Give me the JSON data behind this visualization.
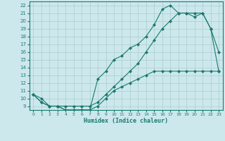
{
  "xlabel": "Humidex (Indice chaleur)",
  "bg_color": "#cce8ec",
  "line_color": "#1a7a6e",
  "grid_color": "#aacccc",
  "xlim": [
    -0.5,
    23.5
  ],
  "ylim": [
    8.5,
    22.5
  ],
  "xticks": [
    0,
    1,
    2,
    3,
    4,
    5,
    6,
    7,
    8,
    9,
    10,
    11,
    12,
    13,
    14,
    15,
    16,
    17,
    18,
    19,
    20,
    21,
    22,
    23
  ],
  "yticks": [
    9,
    10,
    11,
    12,
    13,
    14,
    15,
    16,
    17,
    18,
    19,
    20,
    21,
    22
  ],
  "line1_x": [
    0,
    1,
    2,
    3,
    4,
    5,
    6,
    7,
    8,
    9,
    10,
    11,
    12,
    13,
    14,
    15,
    16,
    17,
    18,
    19,
    20,
    21,
    22,
    23
  ],
  "line1_y": [
    10.5,
    10.0,
    9.0,
    9.0,
    9.0,
    9.0,
    9.0,
    9.0,
    9.5,
    10.5,
    11.5,
    12.5,
    13.5,
    14.5,
    16.0,
    17.5,
    19.0,
    20.0,
    21.0,
    21.0,
    21.0,
    21.0,
    19.0,
    16.0
  ],
  "line2_x": [
    0,
    1,
    2,
    3,
    4,
    5,
    6,
    7,
    8,
    9,
    10,
    11,
    12,
    13,
    14,
    15,
    16,
    17,
    18,
    19,
    20,
    21,
    22,
    23
  ],
  "line2_y": [
    10.5,
    9.5,
    9.0,
    9.0,
    8.5,
    8.5,
    8.5,
    8.5,
    12.5,
    13.5,
    15.0,
    15.5,
    16.5,
    17.0,
    18.0,
    19.5,
    21.5,
    22.0,
    21.0,
    21.0,
    20.5,
    21.0,
    19.0,
    13.5
  ],
  "line3_x": [
    0,
    1,
    2,
    3,
    4,
    5,
    6,
    7,
    8,
    9,
    10,
    11,
    12,
    13,
    14,
    15,
    16,
    17,
    18,
    19,
    20,
    21,
    22,
    23
  ],
  "line3_y": [
    10.5,
    9.5,
    9.0,
    9.0,
    8.5,
    8.5,
    8.5,
    8.5,
    9.0,
    10.0,
    11.0,
    11.5,
    12.0,
    12.5,
    13.0,
    13.5,
    13.5,
    13.5,
    13.5,
    13.5,
    13.5,
    13.5,
    13.5,
    13.5
  ]
}
